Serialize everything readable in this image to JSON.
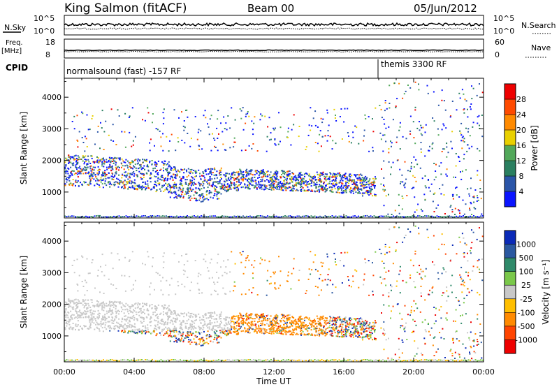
{
  "header": {
    "title": "King Salmon (fitACF)",
    "beam": "Beam 00",
    "date": "05/Jun/2012"
  },
  "top_panels": {
    "nsky_label": "N.Sky",
    "nsearch_label": "N.Search",
    "nsky_ticks": [
      "10^5",
      "10^0"
    ],
    "nsearch_ticks": [
      "10^5",
      "10^0"
    ],
    "freq_label_line1": "Freq.",
    "freq_label_line2": "[MHz]",
    "freq_ticks": [
      "18",
      "8"
    ],
    "nave_label": "Nave",
    "nave_ticks": [
      "60",
      "0"
    ],
    "cpid_label": "CPID",
    "cpid_segments": [
      {
        "label": "normalsound (fast) -157 RF",
        "start_hour": 0
      },
      {
        "label": "themis 3300 RF",
        "start_hour": 18
      }
    ]
  },
  "chart_data": [
    {
      "type": "heatmap",
      "name": "power",
      "xlabel": "",
      "ylabel": "Slant Range [km]",
      "xlim_hours": [
        0,
        24
      ],
      "ylim": [
        180,
        4600
      ],
      "yticks": [
        1000,
        2000,
        3000,
        4000
      ],
      "colorbar": {
        "label": "Power [dB]",
        "ticks": [
          "4",
          "8",
          "12",
          "16",
          "20",
          "24",
          "28"
        ],
        "colors": [
          "#0a14ff",
          "#2a55a8",
          "#2a7f60",
          "#52a85a",
          "#e9d000",
          "#ff8a00",
          "#ff4a00",
          "#ee0000"
        ]
      }
    },
    {
      "type": "heatmap",
      "name": "velocity",
      "xlabel": "Time UT",
      "ylabel": "Slant Range [km]",
      "xlim_hours": [
        0,
        24
      ],
      "ylim": [
        180,
        4600
      ],
      "yticks": [
        1000,
        2000,
        3000,
        4000
      ],
      "xticks": [
        "00:00",
        "04:00",
        "08:00",
        "12:00",
        "16:00",
        "20:00",
        "00:00"
      ],
      "colorbar": {
        "label": "Velocity [m s⁻¹]",
        "ticks": [
          "1000",
          "500",
          "100",
          "25",
          "-25",
          "-100",
          "-500",
          "-1000"
        ],
        "colors": [
          "#0a2ab8",
          "#2a58a0",
          "#2f8a6a",
          "#7ac84a",
          "#c8c8c8",
          "#ffbf00",
          "#ff8a00",
          "#ff4400",
          "#ee0000"
        ]
      }
    }
  ]
}
